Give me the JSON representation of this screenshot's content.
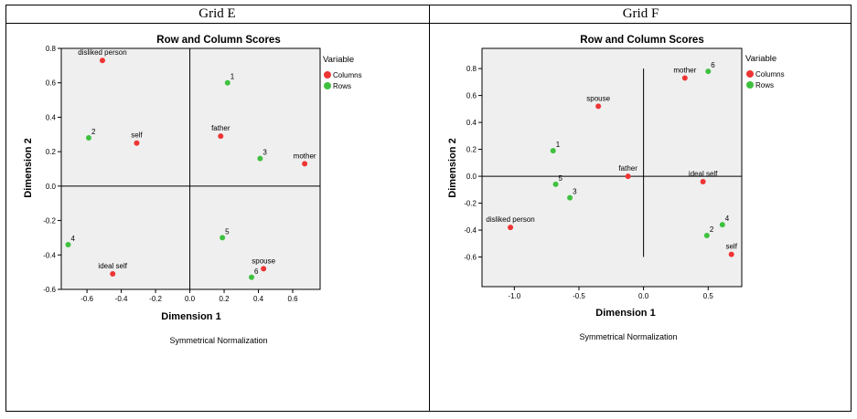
{
  "layout_note": "Two correspondence-analysis biplots side by side",
  "colors": {
    "columns": "#ef3434",
    "rows": "#3fc13f",
    "plot_bg": "#efefef",
    "axis": "#000000"
  },
  "chart_data": [
    {
      "grid_label": "Grid E",
      "type": "scatter",
      "title": "Row and Column Scores",
      "xlabel": "Dimension 1",
      "ylabel": "Dimension 2",
      "note": "Symmetrical Normalization",
      "xlim": [
        -0.75,
        0.76
      ],
      "ylim": [
        -0.6,
        0.8
      ],
      "xticks": [
        -0.6,
        -0.4,
        -0.2,
        0.0,
        0.2,
        0.4,
        0.6
      ],
      "xtick_labels": [
        "-0.6",
        "-0.4",
        "-0.2",
        "0.0",
        "0.2",
        "0.4",
        "0.6"
      ],
      "yticks": [
        -0.6,
        -0.4,
        -0.2,
        0.0,
        0.2,
        0.4,
        0.6,
        0.8
      ],
      "ytick_labels": [
        "-0.6",
        "-0.4",
        "-0.2",
        "0.0",
        "0.2",
        "0.4",
        "0.6",
        "0.8"
      ],
      "legend_title": "Variable",
      "legend": [
        {
          "name": "Columns",
          "group": "columns"
        },
        {
          "name": "Rows",
          "group": "rows"
        }
      ],
      "series": [
        {
          "name": "Columns",
          "group": "columns",
          "points": [
            {
              "label": "disliked person",
              "x": -0.51,
              "y": 0.73
            },
            {
              "label": "self",
              "x": -0.31,
              "y": 0.25
            },
            {
              "label": "father",
              "x": 0.18,
              "y": 0.29
            },
            {
              "label": "mother",
              "x": 0.67,
              "y": 0.13
            },
            {
              "label": "ideal self",
              "x": -0.45,
              "y": -0.51
            },
            {
              "label": "spouse",
              "x": 0.43,
              "y": -0.48
            }
          ]
        },
        {
          "name": "Rows",
          "group": "rows",
          "points": [
            {
              "label": "1",
              "x": 0.22,
              "y": 0.6
            },
            {
              "label": "2",
              "x": -0.59,
              "y": 0.28
            },
            {
              "label": "3",
              "x": 0.41,
              "y": 0.16
            },
            {
              "label": "4",
              "x": -0.71,
              "y": -0.34
            },
            {
              "label": "5",
              "x": 0.19,
              "y": -0.3
            },
            {
              "label": "6",
              "x": 0.36,
              "y": -0.53
            }
          ]
        }
      ]
    },
    {
      "grid_label": "Grid F",
      "type": "scatter",
      "title": "Row and Column Scores",
      "xlabel": "Dimension 1",
      "ylabel": "Dimension 2",
      "note": "Symmetrical Normalization",
      "xlim": [
        -1.25,
        0.76
      ],
      "ylim": [
        -0.82,
        0.95
      ],
      "xticks": [
        -1.0,
        -0.5,
        0.0,
        0.5
      ],
      "xtick_labels": [
        "-1.0",
        "-0.5",
        "0.0",
        "0.5"
      ],
      "yticks": [
        -0.6,
        -0.4,
        -0.2,
        0.0,
        0.2,
        0.4,
        0.6,
        0.8
      ],
      "ytick_labels": [
        "-0.6",
        "-0.4",
        "-0.2",
        "0.0",
        "0.2",
        "0.4",
        "0.6",
        "0.8"
      ],
      "legend_title": "Variable",
      "legend": [
        {
          "name": "Columns",
          "group": "columns"
        },
        {
          "name": "Rows",
          "group": "rows"
        }
      ],
      "series": [
        {
          "name": "Columns",
          "group": "columns",
          "points": [
            {
              "label": "mother",
              "x": 0.32,
              "y": 0.73
            },
            {
              "label": "spouse",
              "x": -0.35,
              "y": 0.52
            },
            {
              "label": "father",
              "x": -0.12,
              "y": 0.0
            },
            {
              "label": "ideal self",
              "x": 0.46,
              "y": -0.04
            },
            {
              "label": "disliked person",
              "x": -1.03,
              "y": -0.38
            },
            {
              "label": "self",
              "x": 0.68,
              "y": -0.58
            }
          ]
        },
        {
          "name": "Rows",
          "group": "rows",
          "points": [
            {
              "label": "6",
              "x": 0.5,
              "y": 0.78
            },
            {
              "label": "1",
              "x": -0.7,
              "y": 0.19
            },
            {
              "label": "5",
              "x": -0.68,
              "y": -0.06
            },
            {
              "label": "3",
              "x": -0.57,
              "y": -0.16
            },
            {
              "label": "4",
              "x": 0.61,
              "y": -0.36
            },
            {
              "label": "2",
              "x": 0.49,
              "y": -0.44
            }
          ]
        }
      ]
    }
  ]
}
